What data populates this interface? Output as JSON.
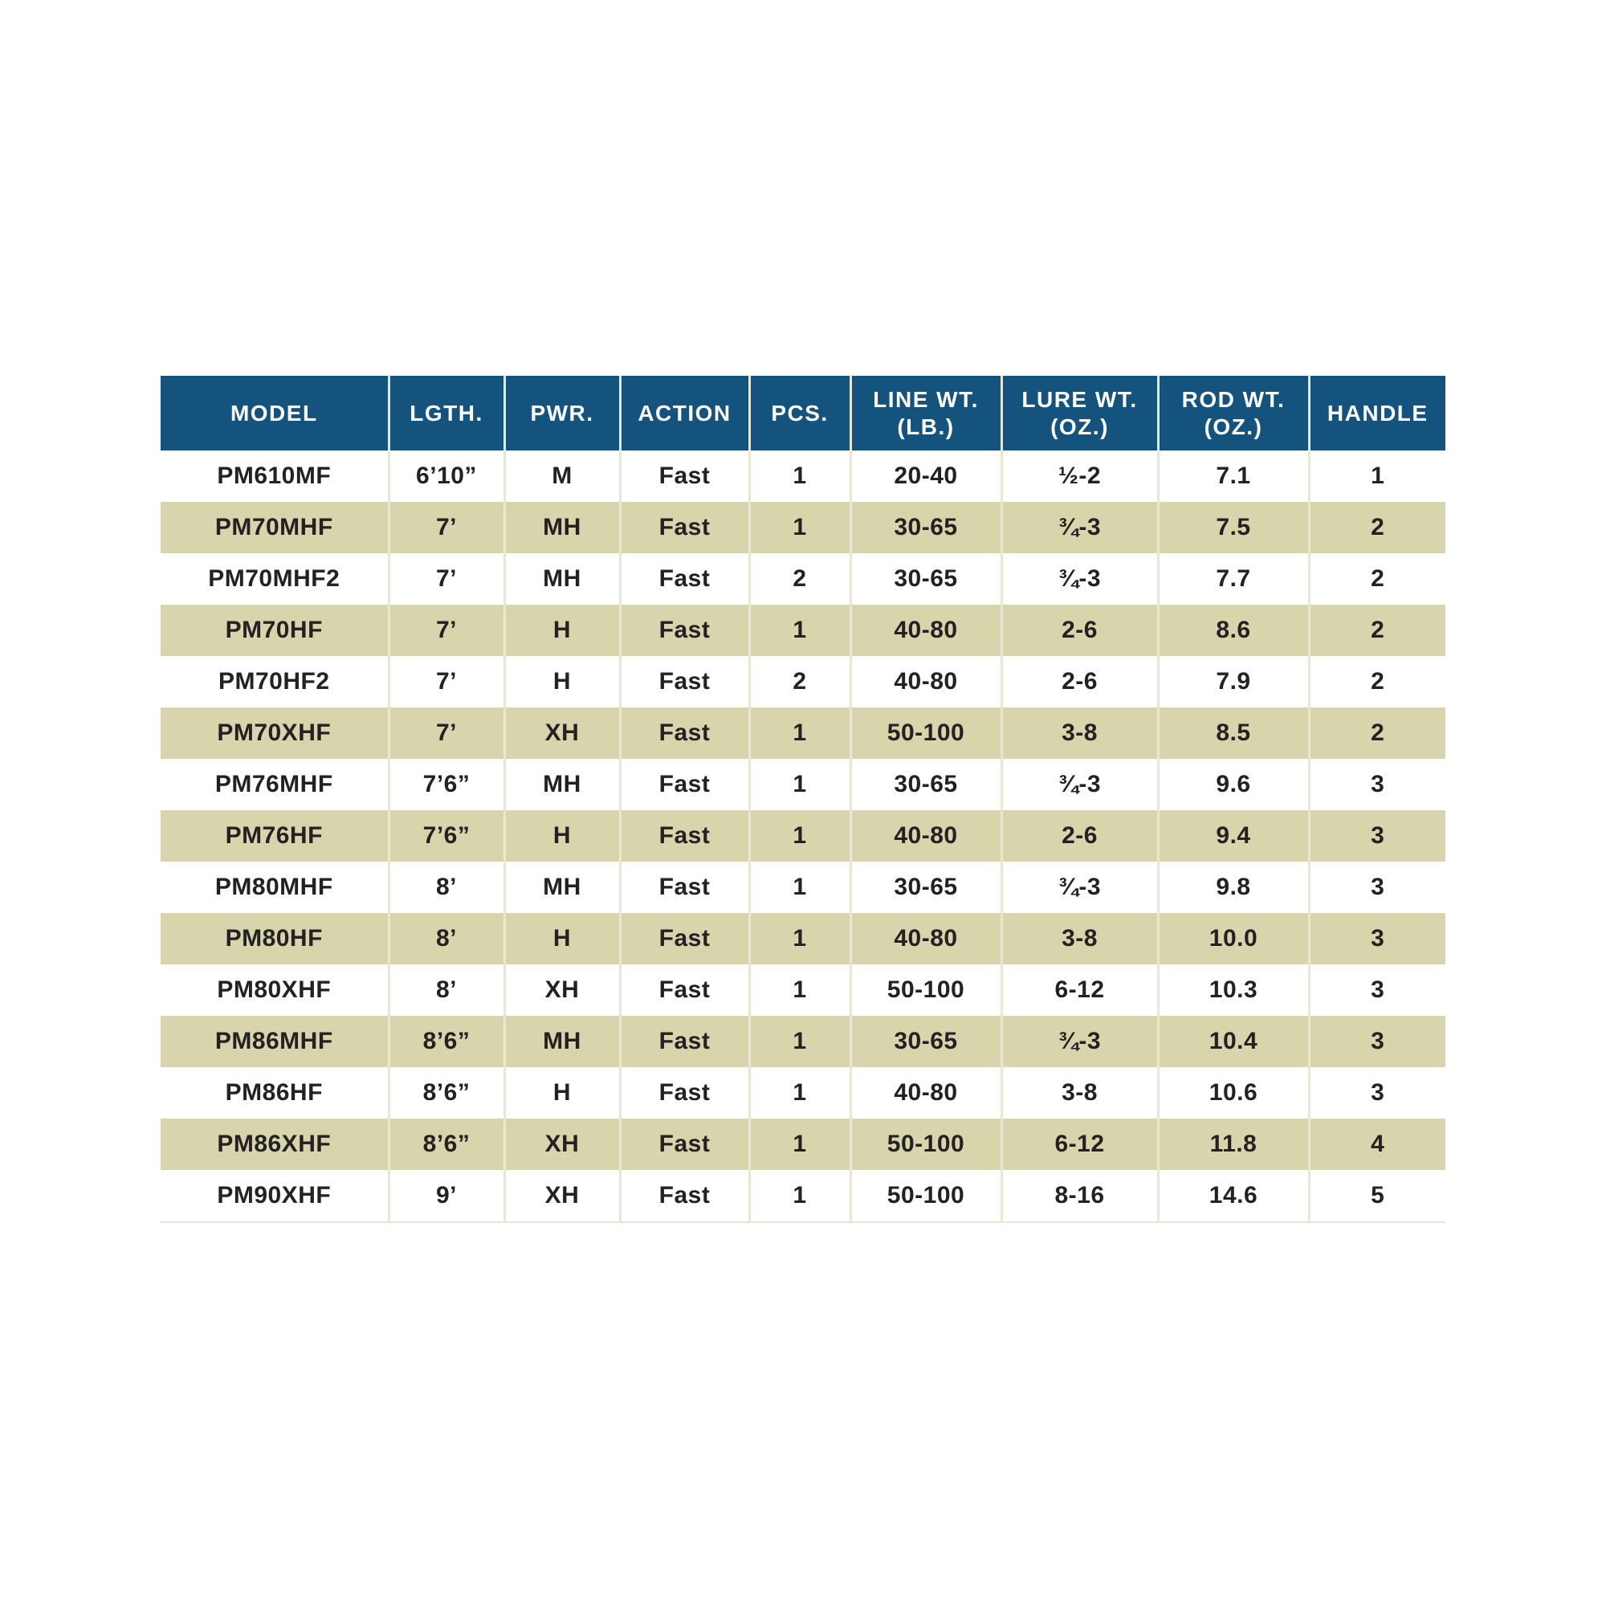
{
  "colors": {
    "header_bg": "#15537F",
    "header_text": "#FFFFFF",
    "row_alt_bg": "#D8D4AC",
    "grid_line": "#E9E6D4",
    "body_text": "#232122",
    "page_bg": "#FFFFFF"
  },
  "table": {
    "columns": [
      {
        "id": "model",
        "label": "MODEL"
      },
      {
        "id": "lgth",
        "label": "LGTH."
      },
      {
        "id": "pwr",
        "label": "PWR."
      },
      {
        "id": "action",
        "label": "ACTION"
      },
      {
        "id": "pcs",
        "label": "PCS."
      },
      {
        "id": "line_wt",
        "label": "LINE WT. (LB.)"
      },
      {
        "id": "lure_wt",
        "label": "LURE WT. (OZ.)"
      },
      {
        "id": "rod_wt",
        "label": "ROD WT. (OZ.)"
      },
      {
        "id": "handle",
        "label": "HANDLE"
      }
    ],
    "rows": [
      {
        "model": "PM610MF",
        "lgth": "6’10”",
        "pwr": "M",
        "action": "Fast",
        "pcs": "1",
        "line_wt": "20-40",
        "lure_wt": "½-2",
        "rod_wt": "7.1",
        "handle": "1"
      },
      {
        "model": "PM70MHF",
        "lgth": "7’",
        "pwr": "MH",
        "action": "Fast",
        "pcs": "1",
        "line_wt": "30-65",
        "lure_wt": "¾-3",
        "rod_wt": "7.5",
        "handle": "2"
      },
      {
        "model": "PM70MHF2",
        "lgth": "7’",
        "pwr": "MH",
        "action": "Fast",
        "pcs": "2",
        "line_wt": "30-65",
        "lure_wt": "¾-3",
        "rod_wt": "7.7",
        "handle": "2"
      },
      {
        "model": "PM70HF",
        "lgth": "7’",
        "pwr": "H",
        "action": "Fast",
        "pcs": "1",
        "line_wt": "40-80",
        "lure_wt": "2-6",
        "rod_wt": "8.6",
        "handle": "2"
      },
      {
        "model": "PM70HF2",
        "lgth": "7’",
        "pwr": "H",
        "action": "Fast",
        "pcs": "2",
        "line_wt": "40-80",
        "lure_wt": "2-6",
        "rod_wt": "7.9",
        "handle": "2"
      },
      {
        "model": "PM70XHF",
        "lgth": "7’",
        "pwr": "XH",
        "action": "Fast",
        "pcs": "1",
        "line_wt": "50-100",
        "lure_wt": "3-8",
        "rod_wt": "8.5",
        "handle": "2"
      },
      {
        "model": "PM76MHF",
        "lgth": "7’6”",
        "pwr": "MH",
        "action": "Fast",
        "pcs": "1",
        "line_wt": "30-65",
        "lure_wt": "¾-3",
        "rod_wt": "9.6",
        "handle": "3"
      },
      {
        "model": "PM76HF",
        "lgth": "7’6”",
        "pwr": "H",
        "action": "Fast",
        "pcs": "1",
        "line_wt": "40-80",
        "lure_wt": "2-6",
        "rod_wt": "9.4",
        "handle": "3"
      },
      {
        "model": "PM80MHF",
        "lgth": "8’",
        "pwr": "MH",
        "action": "Fast",
        "pcs": "1",
        "line_wt": "30-65",
        "lure_wt": "¾-3",
        "rod_wt": "9.8",
        "handle": "3"
      },
      {
        "model": "PM80HF",
        "lgth": "8’",
        "pwr": "H",
        "action": "Fast",
        "pcs": "1",
        "line_wt": "40-80",
        "lure_wt": "3-8",
        "rod_wt": "10.0",
        "handle": "3"
      },
      {
        "model": "PM80XHF",
        "lgth": "8’",
        "pwr": "XH",
        "action": "Fast",
        "pcs": "1",
        "line_wt": "50-100",
        "lure_wt": "6-12",
        "rod_wt": "10.3",
        "handle": "3"
      },
      {
        "model": "PM86MHF",
        "lgth": "8’6”",
        "pwr": "MH",
        "action": "Fast",
        "pcs": "1",
        "line_wt": "30-65",
        "lure_wt": "¾-3",
        "rod_wt": "10.4",
        "handle": "3"
      },
      {
        "model": "PM86HF",
        "lgth": "8’6”",
        "pwr": "H",
        "action": "Fast",
        "pcs": "1",
        "line_wt": "40-80",
        "lure_wt": "3-8",
        "rod_wt": "10.6",
        "handle": "3"
      },
      {
        "model": "PM86XHF",
        "lgth": "8’6”",
        "pwr": "XH",
        "action": "Fast",
        "pcs": "1",
        "line_wt": "50-100",
        "lure_wt": "6-12",
        "rod_wt": "11.8",
        "handle": "4"
      },
      {
        "model": "PM90XHF",
        "lgth": "9’",
        "pwr": "XH",
        "action": "Fast",
        "pcs": "1",
        "line_wt": "50-100",
        "lure_wt": "8-16",
        "rod_wt": "14.6",
        "handle": "5"
      }
    ]
  }
}
